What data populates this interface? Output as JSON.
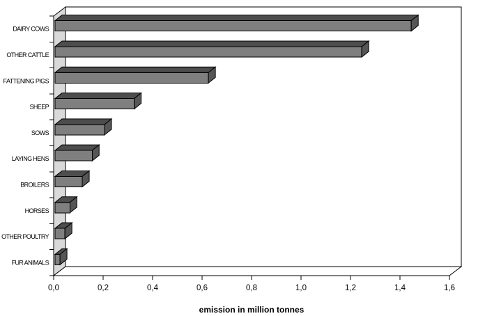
{
  "chart_data": {
    "type": "bar",
    "orientation": "horizontal",
    "style": "3d",
    "title": "",
    "xlabel": "emission in million tonnes",
    "ylabel": "",
    "categories": [
      "DAIRY COWS",
      "OTHER CATTLE",
      "FATTENING PIGS",
      "SHEEP",
      "SOWS",
      "LAYING HENS",
      "BROILERS",
      "HORSES",
      "OTHER POULTRY",
      "FUR ANIMALS"
    ],
    "values": [
      1.44,
      1.24,
      0.62,
      0.32,
      0.2,
      0.15,
      0.11,
      0.06,
      0.04,
      0.02
    ],
    "xlim": [
      0,
      1.6
    ],
    "x_tick_step": 0.2,
    "x_tick_labels": [
      "0,0",
      "0,2",
      "0,4",
      "0,6",
      "0,8",
      "1,0",
      "1,2",
      "1,4",
      "1,6"
    ],
    "grid": false,
    "legend": false,
    "colors": {
      "bar_front": "#7f7f7f",
      "bar_top": "#4d4d4d",
      "bar_side": "#565656",
      "side_wall": "#d9d9d9",
      "back_wall": "#ffffff",
      "outline": "#000000",
      "background": "#ffffff"
    }
  }
}
